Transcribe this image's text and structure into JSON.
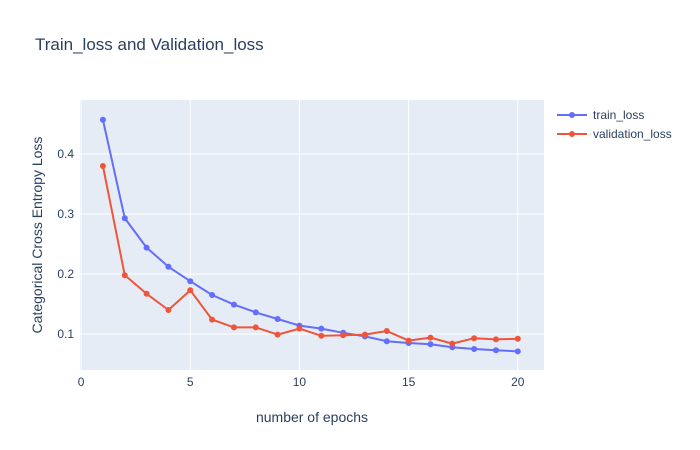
{
  "chart_data": {
    "type": "line",
    "title": "Train_loss and Validation_loss",
    "xlabel": "number of epochs",
    "ylabel": "Categorical Cross Entropy Loss",
    "xlim": [
      -0.05,
      21.2
    ],
    "ylim": [
      0.04,
      0.49
    ],
    "xticks": [
      0,
      5,
      10,
      15,
      20
    ],
    "xtick_labels": [
      "0",
      "5",
      "10",
      "15",
      "20"
    ],
    "yticks": [
      0.1,
      0.2,
      0.3,
      0.4
    ],
    "ytick_labels": [
      "0.1",
      "0.2",
      "0.3",
      "0.4"
    ],
    "grid": true,
    "legend_position": "top-right",
    "x": [
      1,
      2,
      3,
      4,
      5,
      6,
      7,
      8,
      9,
      10,
      11,
      12,
      13,
      14,
      15,
      16,
      17,
      18,
      19,
      20
    ],
    "series": [
      {
        "name": "train_loss",
        "color": "#636efa",
        "values": [
          0.457,
          0.293,
          0.244,
          0.212,
          0.188,
          0.165,
          0.149,
          0.136,
          0.125,
          0.114,
          0.109,
          0.102,
          0.096,
          0.088,
          0.085,
          0.083,
          0.078,
          0.075,
          0.073,
          0.071
        ]
      },
      {
        "name": "validation_loss",
        "color": "#ef553b",
        "values": [
          0.38,
          0.198,
          0.167,
          0.14,
          0.173,
          0.124,
          0.111,
          0.111,
          0.099,
          0.109,
          0.097,
          0.098,
          0.099,
          0.105,
          0.089,
          0.094,
          0.084,
          0.093,
          0.091,
          0.092
        ]
      }
    ]
  },
  "colors": {
    "plot_background": "#e5ecf6",
    "grid": "#ffffff",
    "text": "#2a3f5f"
  }
}
